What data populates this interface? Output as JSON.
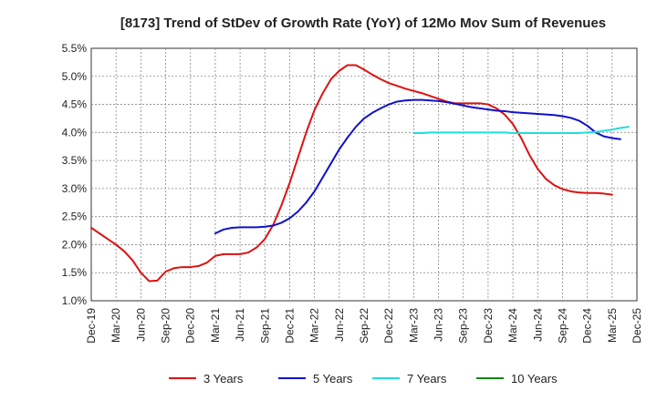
{
  "chart_data": {
    "type": "line",
    "title": "[8173]  Trend of StDev of Growth Rate (YoY) of 12Mo Mov Sum of Revenues",
    "xlabel": "",
    "ylabel": "",
    "ylim": [
      1.0,
      5.5
    ],
    "y_ticks": [
      "1.0%",
      "1.5%",
      "2.0%",
      "2.5%",
      "3.0%",
      "3.5%",
      "4.0%",
      "4.5%",
      "5.0%",
      "5.5%"
    ],
    "x_ticks": [
      "Dec-19",
      "Mar-20",
      "Jun-20",
      "Sep-20",
      "Dec-20",
      "Mar-21",
      "Jun-21",
      "Sep-21",
      "Dec-21",
      "Mar-22",
      "Jun-22",
      "Sep-22",
      "Dec-22",
      "Mar-23",
      "Jun-23",
      "Sep-23",
      "Dec-23",
      "Mar-24",
      "Jun-24",
      "Sep-24",
      "Dec-24",
      "Mar-25",
      "Dec-25"
    ],
    "grid": true,
    "legend_position": "bottom",
    "series": [
      {
        "name": "3 Years",
        "color": "#dd1111",
        "start_month_index": 0,
        "values": [
          2.3,
          2.2,
          2.1,
          2.0,
          1.88,
          1.72,
          1.5,
          1.35,
          1.36,
          1.52,
          1.58,
          1.6,
          1.6,
          1.62,
          1.68,
          1.8,
          1.83,
          1.83,
          1.83,
          1.86,
          1.95,
          2.1,
          2.35,
          2.7,
          3.1,
          3.55,
          4.0,
          4.4,
          4.7,
          4.95,
          5.1,
          5.2,
          5.2,
          5.12,
          5.03,
          4.95,
          4.88,
          4.83,
          4.78,
          4.74,
          4.7,
          4.65,
          4.6,
          4.55,
          4.52,
          4.52,
          4.52,
          4.52,
          4.5,
          4.43,
          4.32,
          4.15,
          3.9,
          3.6,
          3.35,
          3.17,
          3.06,
          2.99,
          2.95,
          2.93,
          2.92,
          2.92,
          2.91,
          2.89
        ]
      },
      {
        "name": "5 Years",
        "color": "#1111cc",
        "start_month_index": 15,
        "values": [
          2.2,
          2.27,
          2.3,
          2.31,
          2.31,
          2.31,
          2.32,
          2.34,
          2.39,
          2.47,
          2.59,
          2.75,
          2.95,
          3.2,
          3.45,
          3.7,
          3.91,
          4.1,
          4.25,
          4.35,
          4.43,
          4.5,
          4.55,
          4.57,
          4.58,
          4.58,
          4.57,
          4.56,
          4.54,
          4.51,
          4.48,
          4.45,
          4.43,
          4.41,
          4.39,
          4.38,
          4.36,
          4.35,
          4.34,
          4.33,
          4.32,
          4.31,
          4.29,
          4.26,
          4.21,
          4.12,
          4.0,
          3.93,
          3.9,
          3.88
        ]
      },
      {
        "name": "7 Years",
        "color": "#22dddd",
        "start_month_index": 39,
        "values": [
          3.99,
          3.99,
          4.0,
          4.0,
          4.0,
          4.0,
          4.0,
          4.0,
          4.0,
          4.0,
          4.0,
          4.0,
          3.99,
          3.99,
          3.99,
          3.99,
          3.99,
          3.99,
          3.99,
          3.99,
          3.99,
          4.0,
          4.01,
          4.03,
          4.05,
          4.08,
          4.1
        ]
      },
      {
        "name": "10 Years",
        "color": "#118811",
        "start_month_index": 0,
        "values": []
      }
    ]
  }
}
